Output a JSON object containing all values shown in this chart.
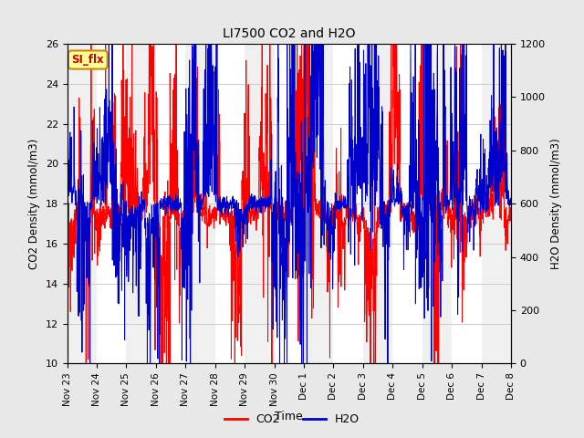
{
  "title": "LI7500 CO2 and H2O",
  "xlabel": "Time",
  "ylabel_left": "CO2 Density (mmol/m3)",
  "ylabel_right": "H2O Density (mmol/m3)",
  "ylim_left": [
    10,
    26
  ],
  "ylim_right": [
    0,
    1200
  ],
  "yticks_left": [
    10,
    12,
    14,
    16,
    18,
    20,
    22,
    24,
    26
  ],
  "yticks_right": [
    0,
    200,
    400,
    600,
    800,
    1000,
    1200
  ],
  "bg_color": "#e8e8e8",
  "plot_bg_color": "#f0f0f0",
  "strip_color": "#ffffff",
  "co2_color": "#ff0000",
  "h2o_color": "#0000cc",
  "annotation_text": "SI_flx",
  "annotation_bg": "#ffff99",
  "annotation_border": "#cc8800",
  "x_tick_labels": [
    "Nov 23",
    "Nov 24",
    "Nov 25",
    "Nov 26",
    "Nov 27",
    "Nov 28",
    "Nov 29",
    "Nov 30",
    "Dec 1",
    "Dec 2",
    "Dec 3",
    "Dec 4",
    "Dec 5",
    "Dec 6",
    "Dec 7",
    "Dec 8"
  ],
  "n_days": 15,
  "n_points": 2000,
  "seed": 7
}
